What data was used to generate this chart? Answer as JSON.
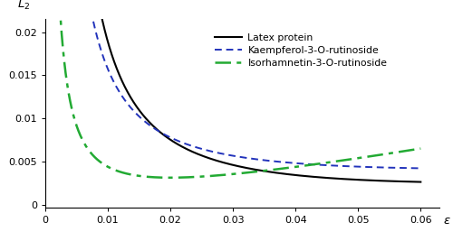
{
  "xlim": [
    0,
    0.063
  ],
  "ylim": [
    -0.0003,
    0.0215
  ],
  "yticks": [
    0,
    0.005,
    0.01,
    0.015,
    0.02
  ],
  "xticks": [
    0,
    0.01,
    0.02,
    0.03,
    0.04,
    0.05,
    0.06
  ],
  "legend": [
    "Latex protein",
    "Kaempferol-3-O-rutinoside",
    "Isorhamnetin-3-O-rutinoside"
  ],
  "line_colors": [
    "#000000",
    "#2233bb",
    "#22aa33"
  ],
  "background_color": "#ffffff",
  "figsize": [
    5.0,
    2.67
  ],
  "dpi": 100
}
